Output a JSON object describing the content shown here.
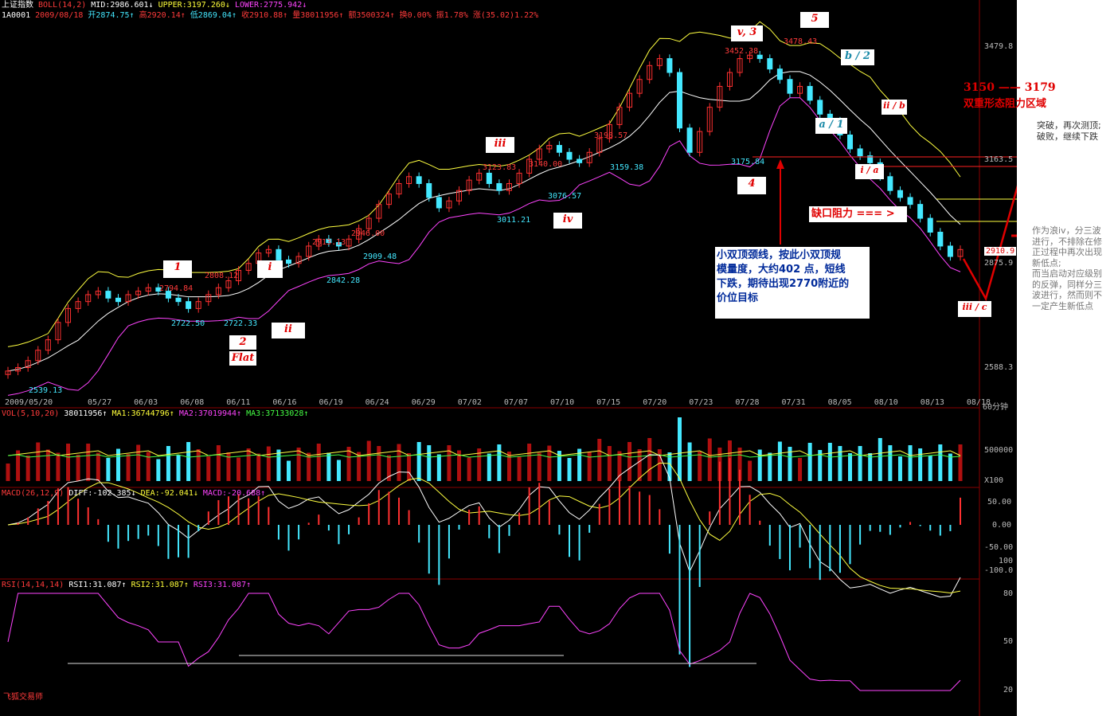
{
  "header": {
    "index_name": "上证指数",
    "indicator": "BOLL(14,2)",
    "mid": "MID:2986.601↓",
    "upper": "UPPER:3197.260↓",
    "lower": "LOWER:2775.942↓",
    "code": "1A0001",
    "date": "2009/08/18",
    "open": "开2874.75↑",
    "high": "高2920.14↑",
    "low": "低2869.04↑",
    "close": "收2910.88↑",
    "volume": "量38011956↑",
    "amount": "额3500324↑",
    "turnover": "换0.00%",
    "amplitude": "振1.78%",
    "change": "涨(35.02)1.22%"
  },
  "price_axis": {
    "ticks": [
      "3479.8",
      "3163.5",
      "2875.9",
      "2588.3"
    ],
    "current_box": "2910.9",
    "period": "60分钟"
  },
  "date_axis": [
    "2009/05/20",
    "05/27",
    "06/03",
    "06/08",
    "06/11",
    "06/16",
    "06/19",
    "06/24",
    "06/29",
    "07/02",
    "07/07",
    "07/10",
    "07/15",
    "07/20",
    "07/23",
    "07/28",
    "07/31",
    "08/05",
    "08/10",
    "08/13",
    "08/18"
  ],
  "price_labels": [
    "2539.13",
    "2794.84",
    "2722.50",
    "2808.12",
    "2722.33",
    "2913.13",
    "2842.28",
    "2946.00",
    "2909.48",
    "3123.83",
    "3011.21",
    "3140.00",
    "3076.57",
    "3198.57",
    "3159.38",
    "3452.38",
    "3175.84",
    "3478.43"
  ],
  "wave_labels": {
    "w1": "1",
    "w2": "2",
    "flat": "Flat",
    "wi": "i",
    "wii": "ii",
    "wiii": "iii",
    "wiv": "iv",
    "w3": "v, 3",
    "w4": "4",
    "w5": "5",
    "b2": "b / 2",
    "a1": "a / 1",
    "ib": "ii / b",
    "ia": "i / a",
    "iiic": "iii / c"
  },
  "annotations": {
    "resistance_range": "3150 —— 3179",
    "resistance_label": "双重形态阻力区域",
    "breakout_note_1": "突破，再次测顶;",
    "breakout_note_2": "破败，继续下跌",
    "gap_resistance": "缺口阻力 === >",
    "neckline_note": [
      "小双顶颈线，按此小双顶规",
      "模量度，大约402 点，短线",
      "下跌，期待出现2770附近的",
      "价位目标"
    ],
    "wave_note": [
      "作为浪iv，分三波",
      "进行，不排除在修",
      "正过程中再次出现",
      "新低点;",
      "而当启动对应级别",
      "的反弹，同样分三",
      "波进行，然而则不",
      "一定产生新低点"
    ]
  },
  "volume_header": {
    "label": "VOL(5,10,20)",
    "vol": "38011956↑",
    "ma1": "MA1:36744796↑",
    "ma2": "MA2:37019944↑",
    "ma3": "MA3:37133028↑"
  },
  "volume_axis": {
    "tick": "500000",
    "unit": "X100"
  },
  "macd_header": {
    "label": "MACD(26,12,9)",
    "diff": "DIFF:-102.385↓",
    "dea": "DEA:-92.041↓",
    "macd": "MACD:-20.688↑"
  },
  "macd_axis": [
    "50.00",
    "0.00",
    "-50.00",
    "100",
    "-100.0"
  ],
  "rsi_header": {
    "label": "RSI(14,14,14)",
    "rsi1": "RSI1:31.087↑",
    "rsi2": "RSI2:31.087↑",
    "rsi3": "RSI3:31.087↑"
  },
  "rsi_axis": [
    "80",
    "50",
    "20"
  ],
  "watermark": "飞狐交易师",
  "colors": {
    "up": "#ff3030",
    "down": "#44e8ff",
    "upper": "#ffff40",
    "mid": "#ffffff",
    "lower": "#ff44ff",
    "annotation": "#e00000",
    "rsi": "#ff44ff"
  },
  "chart_data": {
    "type": "candlestick",
    "title": "上证指数",
    "period": "60分钟",
    "ylim": [
      2500,
      3560
    ],
    "close_series": [
      2560,
      2570,
      2590,
      2620,
      2650,
      2700,
      2740,
      2760,
      2780,
      2790,
      2770,
      2760,
      2780,
      2790,
      2800,
      2790,
      2770,
      2760,
      2740,
      2760,
      2780,
      2800,
      2820,
      2850,
      2870,
      2900,
      2910,
      2880,
      2870,
      2890,
      2920,
      2940,
      2930,
      2920,
      2940,
      2970,
      3000,
      3040,
      3070,
      3100,
      3120,
      3100,
      3060,
      3030,
      3050,
      3080,
      3110,
      3130,
      3100,
      3080,
      3100,
      3130,
      3170,
      3200,
      3210,
      3190,
      3170,
      3160,
      3190,
      3230,
      3270,
      3320,
      3360,
      3400,
      3440,
      3460,
      3420,
      3260,
      3190,
      3250,
      3320,
      3380,
      3420,
      3460,
      3470,
      3460,
      3430,
      3400,
      3360,
      3380,
      3340,
      3300,
      3280,
      3240,
      3200,
      3180,
      3160,
      3120,
      3080,
      3060,
      3040,
      3000,
      2960,
      2920,
      2890,
      2910
    ],
    "bands": {
      "mid": "white",
      "upper": "yellow",
      "lower": "magenta"
    },
    "volume_ylim": [
      0,
      800000
    ],
    "macd_ylim": [
      -110,
      60
    ],
    "rsi_ylim": [
      15,
      85
    ]
  }
}
